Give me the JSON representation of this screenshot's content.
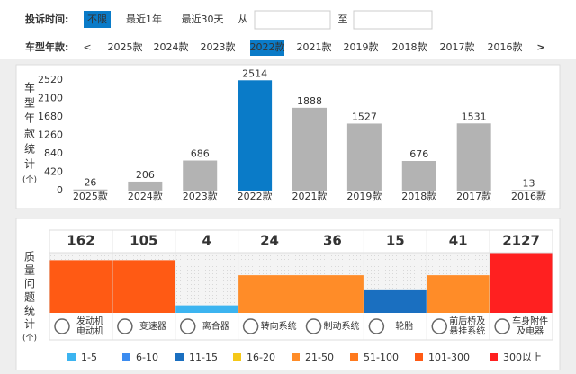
{
  "filters": {
    "time": {
      "label": "投诉时间:",
      "options": [
        "不限",
        "最近1年",
        "最近30天"
      ],
      "selected": 0,
      "from": "从",
      "to": "至"
    },
    "year": {
      "label": "车型年款:",
      "prev": "<",
      "options": [
        "2025款",
        "2024款",
        "2023款",
        "2022款",
        "2021款",
        "2019款",
        "2018款",
        "2017款",
        "2016款"
      ],
      "selected": 3,
      "next": ">"
    }
  },
  "chart_data": [
    {
      "type": "bar",
      "y_label_chars": [
        "车",
        "型",
        "年",
        "款",
        "统",
        "计"
      ],
      "y_unit": "(个)",
      "categories": [
        "2025款",
        "2024款",
        "2023款",
        "2022款",
        "2021款",
        "2019款",
        "2018款",
        "2017款",
        "2016款"
      ],
      "values": [
        26,
        206,
        686,
        2514,
        1888,
        1527,
        676,
        1531,
        13
      ],
      "colors": [
        "#b3b3b3",
        "#b3b3b3",
        "#b3b3b3",
        "#0a7bc8",
        "#b3b3b3",
        "#b3b3b3",
        "#b3b3b3",
        "#b3b3b3",
        "#b3b3b3"
      ],
      "ylim": [
        0,
        2520
      ],
      "yticks": [
        0,
        420,
        840,
        1260,
        1680,
        2100,
        2520
      ],
      "grid": false
    },
    {
      "type": "level",
      "y_label_chars": [
        "质",
        "量",
        "问",
        "题",
        "统",
        "计"
      ],
      "y_unit": "(个)",
      "categories": [
        [
          "发动机",
          "电动机"
        ],
        [
          "变速器"
        ],
        [
          "离合器"
        ],
        [
          "转向系统"
        ],
        [
          "制动系统"
        ],
        [
          "轮胎"
        ],
        [
          "前后桥及",
          "悬挂系统"
        ],
        [
          "车身附件",
          "及电器"
        ]
      ],
      "values": [
        162,
        105,
        4,
        24,
        36,
        15,
        41,
        2127
      ],
      "colors": [
        "#ff5a14",
        "#ff5a14",
        "#3cb4f0",
        "#ff8c28",
        "#ff8c28",
        "#1a6fc0",
        "#ff8c28",
        "#ff2020"
      ],
      "legend": [
        {
          "label": "1-5",
          "color": "#3cb4f0"
        },
        {
          "label": "6-10",
          "color": "#3c8cf0"
        },
        {
          "label": "11-15",
          "color": "#1a6fc0"
        },
        {
          "label": "16-20",
          "color": "#f5c818"
        },
        {
          "label": "21-50",
          "color": "#ff8c28"
        },
        {
          "label": "51-100",
          "color": "#ff7a1e"
        },
        {
          "label": "101-300",
          "color": "#ff5a14"
        },
        {
          "label": "300以上",
          "color": "#ff2020"
        }
      ]
    }
  ]
}
